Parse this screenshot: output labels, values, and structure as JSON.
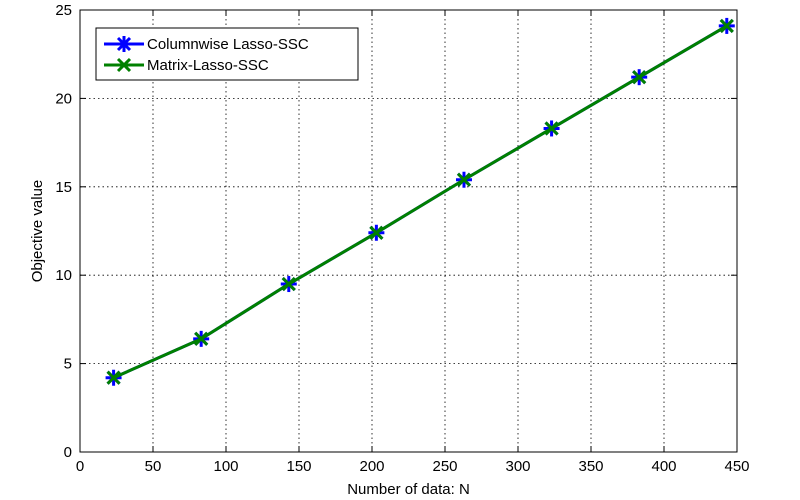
{
  "chart_data": {
    "type": "line",
    "title": "",
    "xlabel": "Number of data: N",
    "ylabel": "Objective value",
    "xlim": [
      0,
      450
    ],
    "ylim": [
      0,
      25
    ],
    "xticks": [
      0,
      50,
      100,
      150,
      200,
      250,
      300,
      350,
      400,
      450
    ],
    "yticks": [
      0,
      5,
      10,
      15,
      20,
      25
    ],
    "grid": true,
    "legend_position": "top-left",
    "series": [
      {
        "name": "Columnwise Lasso-SSC",
        "color": "#0000ff",
        "marker": "asterisk",
        "x": [
          23,
          83,
          143,
          203,
          263,
          323,
          383,
          443
        ],
        "y": [
          4.2,
          6.4,
          9.5,
          12.4,
          15.4,
          18.3,
          21.2,
          24.1
        ]
      },
      {
        "name": "Matrix-Lasso-SSC",
        "color": "#008000",
        "marker": "x",
        "x": [
          23,
          83,
          143,
          203,
          263,
          323,
          383,
          443
        ],
        "y": [
          4.2,
          6.4,
          9.5,
          12.4,
          15.4,
          18.3,
          21.2,
          24.1
        ]
      }
    ]
  }
}
